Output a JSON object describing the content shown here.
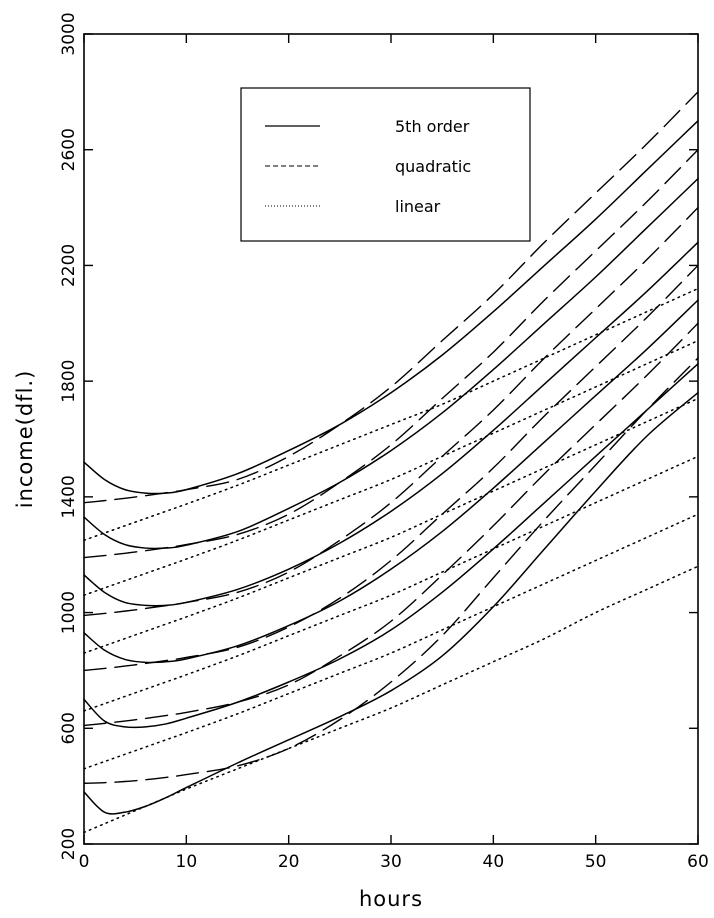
{
  "chart_data": {
    "type": "line",
    "title": "",
    "xlabel": "hours",
    "ylabel": "income(dfl.)",
    "xlim": [
      0,
      60
    ],
    "ylim": [
      200,
      3000
    ],
    "xticks": [
      0,
      10,
      20,
      30,
      40,
      50,
      60
    ],
    "yticks": [
      200,
      600,
      1000,
      1400,
      1800,
      2200,
      2600,
      3000
    ],
    "grid": false,
    "legend_position": "top-center",
    "legend": [
      {
        "label": "5th order",
        "style": "solid"
      },
      {
        "label": "quadratic",
        "style": "dashed"
      },
      {
        "label": "linear",
        "style": "dotted"
      }
    ],
    "x": [
      0,
      2,
      4,
      6,
      8,
      10,
      15,
      20,
      25,
      30,
      35,
      40,
      45,
      50,
      55,
      60
    ],
    "series": [
      {
        "style": "solid",
        "values": [
          1520,
          1460,
          1425,
          1413,
          1413,
          1425,
          1480,
          1560,
          1650,
          1760,
          1890,
          2040,
          2200,
          2360,
          2530,
          2700
        ]
      },
      {
        "style": "dashed",
        "values": [
          1380,
          1387,
          1395,
          1404,
          1414,
          1425,
          1460,
          1540,
          1650,
          1780,
          1940,
          2100,
          2280,
          2450,
          2620,
          2800
        ]
      },
      {
        "style": "dotted",
        "values": [
          1250,
          1275,
          1300,
          1325,
          1350,
          1375,
          1440,
          1510,
          1580,
          1650,
          1720,
          1800,
          1880,
          1960,
          2040,
          2120
        ]
      },
      {
        "style": "solid",
        "values": [
          1330,
          1270,
          1235,
          1223,
          1223,
          1233,
          1280,
          1360,
          1450,
          1560,
          1690,
          1840,
          2000,
          2160,
          2330,
          2500
        ]
      },
      {
        "style": "dashed",
        "values": [
          1190,
          1197,
          1205,
          1214,
          1224,
          1235,
          1270,
          1340,
          1450,
          1580,
          1740,
          1900,
          2080,
          2250,
          2420,
          2600
        ]
      },
      {
        "style": "dotted",
        "values": [
          1060,
          1085,
          1110,
          1135,
          1160,
          1185,
          1250,
          1320,
          1390,
          1460,
          1540,
          1620,
          1700,
          1780,
          1860,
          1940
        ]
      },
      {
        "style": "solid",
        "values": [
          1130,
          1070,
          1035,
          1025,
          1025,
          1035,
          1080,
          1150,
          1240,
          1350,
          1480,
          1630,
          1790,
          1950,
          2110,
          2280
        ]
      },
      {
        "style": "dashed",
        "values": [
          990,
          997,
          1005,
          1014,
          1024,
          1035,
          1070,
          1140,
          1250,
          1380,
          1540,
          1700,
          1880,
          2050,
          2220,
          2400
        ]
      },
      {
        "style": "dotted",
        "values": [
          860,
          885,
          910,
          935,
          960,
          985,
          1050,
          1120,
          1190,
          1260,
          1340,
          1420,
          1500,
          1580,
          1660,
          1740
        ]
      },
      {
        "style": "solid",
        "values": [
          930,
          870,
          838,
          828,
          830,
          840,
          885,
          955,
          1040,
          1150,
          1280,
          1430,
          1590,
          1750,
          1910,
          2080
        ]
      },
      {
        "style": "dashed",
        "values": [
          800,
          807,
          815,
          824,
          834,
          845,
          880,
          950,
          1050,
          1180,
          1340,
          1500,
          1680,
          1850,
          2020,
          2200
        ]
      },
      {
        "style": "dotted",
        "values": [
          660,
          685,
          710,
          735,
          760,
          785,
          850,
          920,
          990,
          1060,
          1140,
          1220,
          1300,
          1380,
          1460,
          1540
        ]
      },
      {
        "style": "solid",
        "values": [
          700,
          625,
          605,
          605,
          615,
          635,
          690,
          760,
          840,
          940,
          1070,
          1220,
          1380,
          1540,
          1700,
          1860
        ]
      },
      {
        "style": "dashed",
        "values": [
          610,
          617,
          625,
          634,
          644,
          655,
          690,
          750,
          850,
          970,
          1130,
          1300,
          1480,
          1650,
          1820,
          2000
        ]
      },
      {
        "style": "dotted",
        "values": [
          460,
          485,
          510,
          535,
          560,
          585,
          650,
          720,
          790,
          860,
          940,
          1020,
          1100,
          1180,
          1260,
          1340
        ]
      },
      {
        "style": "solid",
        "values": [
          380,
          310,
          310,
          330,
          360,
          395,
          480,
          560,
          640,
          730,
          850,
          1020,
          1220,
          1420,
          1610,
          1760
        ]
      },
      {
        "style": "dashed",
        "values": [
          410,
          412,
          416,
          422,
          430,
          440,
          470,
          530,
          630,
          760,
          920,
          1120,
          1320,
          1510,
          1700,
          1880
        ]
      },
      {
        "style": "dotted",
        "values": [
          240,
          270,
          300,
          330,
          360,
          390,
          460,
          530,
          600,
          670,
          750,
          830,
          910,
          1000,
          1080,
          1160
        ]
      }
    ]
  }
}
